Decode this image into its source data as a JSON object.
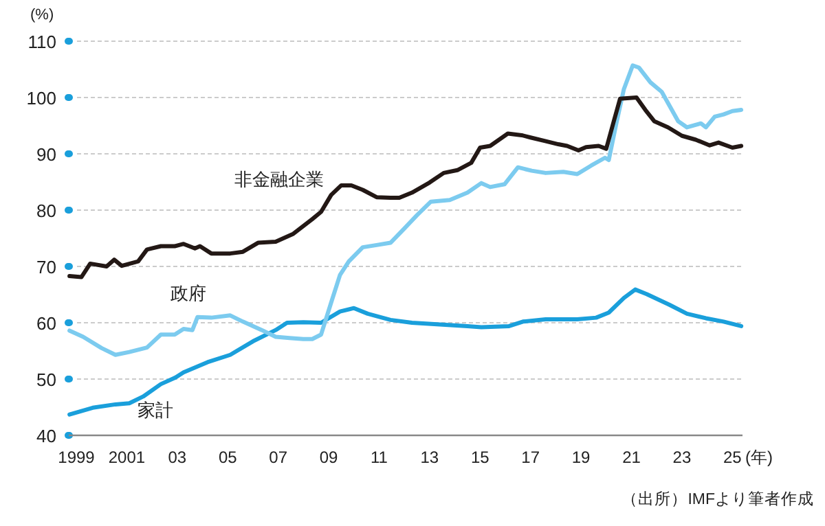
{
  "chart_data": {
    "type": "line",
    "xlabel": "(年)",
    "ylabel": "(%)",
    "annotations": [
      "（出所）IMFより筆者作成"
    ],
    "xlim": [
      1998.7,
      2025.4
    ],
    "ylim": [
      40,
      110
    ],
    "yticks": [
      40,
      50,
      60,
      70,
      80,
      90,
      100,
      110
    ],
    "xticks": [
      {
        "value": 1999,
        "label": "1999"
      },
      {
        "value": 2001,
        "label": "2001"
      },
      {
        "value": 2003,
        "label": "03"
      },
      {
        "value": 2005,
        "label": "05"
      },
      {
        "value": 2007,
        "label": "07"
      },
      {
        "value": 2009,
        "label": "09"
      },
      {
        "value": 2011,
        "label": "11"
      },
      {
        "value": 2013,
        "label": "13"
      },
      {
        "value": 2015,
        "label": "15"
      },
      {
        "value": 2017,
        "label": "17"
      },
      {
        "value": 2019,
        "label": "19"
      },
      {
        "value": 2021,
        "label": "21"
      },
      {
        "value": 2023,
        "label": "23"
      },
      {
        "value": 2025,
        "label": "25"
      }
    ],
    "grid": "y",
    "series": [
      {
        "name": "非金融企業",
        "color": "#231815",
        "x": [
          1998.73,
          1999.2,
          1999.55,
          2000.2,
          2000.5,
          2000.8,
          2001.45,
          2001.8,
          2002.35,
          2002.9,
          2003.25,
          2003.7,
          2003.9,
          2004.35,
          2005.1,
          2005.6,
          2006.2,
          2006.9,
          2007.6,
          2008.35,
          2008.7,
          2009.1,
          2009.5,
          2009.9,
          2010.35,
          2010.9,
          2011.45,
          2011.8,
          2012.3,
          2013.0,
          2013.56,
          2014.1,
          2014.65,
          2015.0,
          2015.4,
          2016.1,
          2016.65,
          2017.0,
          2017.55,
          2018.1,
          2018.45,
          2018.9,
          2019.2,
          2019.7,
          2020.0,
          2020.3,
          2020.55,
          2021.2,
          2021.55,
          2021.9,
          2022.45,
          2023.0,
          2023.55,
          2024.1,
          2024.45,
          2025.0,
          2025.35
        ],
        "values": [
          68.3,
          68.1,
          70.5,
          70.0,
          71.2,
          70.1,
          70.9,
          73.0,
          73.6,
          73.6,
          74.0,
          73.2,
          73.6,
          72.3,
          72.3,
          72.6,
          74.2,
          74.4,
          75.8,
          78.4,
          79.7,
          82.7,
          84.4,
          84.4,
          83.6,
          82.3,
          82.2,
          82.2,
          83.1,
          84.9,
          86.6,
          87.1,
          88.4,
          91.1,
          91.4,
          93.6,
          93.3,
          92.9,
          92.3,
          91.7,
          91.4,
          90.6,
          91.2,
          91.4,
          90.9,
          95.8,
          99.8,
          100.0,
          97.8,
          95.8,
          94.7,
          93.2,
          92.5,
          91.5,
          92.0,
          91.1,
          91.4
        ]
      },
      {
        "name": "政府",
        "color": "#7ccbef",
        "x": [
          1998.73,
          1999.27,
          2000.0,
          2000.55,
          2001.1,
          2001.8,
          2002.35,
          2002.9,
          2003.25,
          2003.6,
          2003.8,
          2004.35,
          2005.1,
          2005.6,
          2006.35,
          2006.9,
          2007.45,
          2008.0,
          2008.35,
          2008.7,
          2009.1,
          2009.45,
          2009.8,
          2010.35,
          2010.9,
          2011.45,
          2011.97,
          2012.5,
          2013.05,
          2013.8,
          2014.5,
          2015.05,
          2015.4,
          2015.97,
          2016.5,
          2017.05,
          2017.6,
          2018.3,
          2018.85,
          2019.4,
          2019.95,
          2020.1,
          2020.4,
          2020.7,
          2021.05,
          2021.3,
          2021.75,
          2022.2,
          2022.85,
          2023.2,
          2023.75,
          2023.95,
          2024.3,
          2024.65,
          2025.0,
          2025.35
        ],
        "values": [
          58.6,
          57.5,
          55.5,
          54.3,
          54.8,
          55.6,
          57.9,
          57.9,
          58.9,
          58.7,
          61.0,
          60.9,
          61.3,
          60.2,
          58.7,
          57.5,
          57.3,
          57.1,
          57.1,
          57.9,
          63.6,
          68.5,
          70.9,
          73.4,
          73.8,
          74.2,
          76.6,
          79.1,
          81.5,
          81.8,
          83.1,
          84.8,
          84.1,
          84.6,
          87.6,
          87.0,
          86.6,
          86.8,
          86.4,
          87.9,
          89.3,
          88.9,
          95.4,
          101.5,
          105.7,
          105.3,
          102.7,
          101.0,
          95.8,
          94.7,
          95.4,
          94.7,
          96.6,
          97.0,
          97.6,
          97.8
        ]
      },
      {
        "name": "家計",
        "color": "#1a9fdb",
        "x": [
          1998.73,
          1999.65,
          2000.55,
          2001.1,
          2001.65,
          2002.35,
          2002.9,
          2003.25,
          2004.2,
          2005.1,
          2006.0,
          2006.9,
          2007.35,
          2008.0,
          2008.7,
          2009.45,
          2010.0,
          2010.55,
          2011.45,
          2012.3,
          2013.4,
          2014.5,
          2015.05,
          2016.15,
          2016.7,
          2017.6,
          2018.85,
          2019.6,
          2020.1,
          2020.7,
          2021.15,
          2021.6,
          2022.5,
          2023.2,
          2023.95,
          2024.65,
          2025.35
        ],
        "values": [
          43.7,
          44.9,
          45.5,
          45.7,
          46.9,
          49.1,
          50.2,
          51.2,
          53.0,
          54.3,
          56.7,
          58.7,
          60.0,
          60.1,
          60.0,
          62.0,
          62.6,
          61.6,
          60.5,
          60.0,
          59.7,
          59.4,
          59.2,
          59.4,
          60.2,
          60.6,
          60.6,
          60.9,
          61.8,
          64.4,
          65.9,
          65.1,
          63.2,
          61.6,
          60.8,
          60.2,
          59.4
        ]
      }
    ]
  }
}
